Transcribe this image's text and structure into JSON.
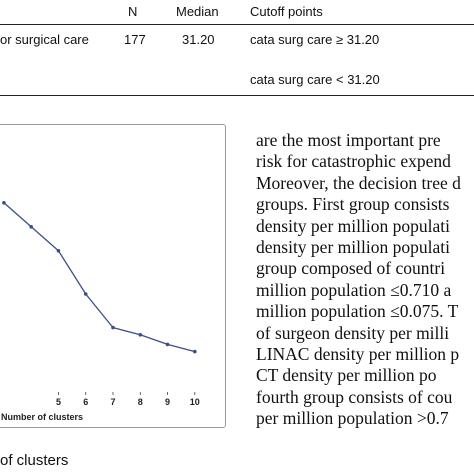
{
  "table": {
    "headers": {
      "n": "N",
      "median": "Median",
      "cutoff": "Cutoff points"
    },
    "row1": {
      "label": "or surgical care",
      "n": "177",
      "median": "31.20",
      "cutoff": "cata surg care ≥ 31.20"
    },
    "row2": {
      "cutoff": "cata surg care < 31.20"
    }
  },
  "figure": {
    "xlabel": "Number of clusters",
    "caption": "of clusters"
  },
  "chart_data": {
    "type": "line",
    "xlabel": "Number of clusters",
    "x": [
      3,
      4,
      5,
      6,
      7,
      8,
      9,
      10
    ],
    "x_ticks": [
      "5",
      "6",
      "7",
      "8",
      "9",
      "10"
    ],
    "y": [
      0.78,
      0.68,
      0.58,
      0.4,
      0.26,
      0.23,
      0.19,
      0.16
    ],
    "xlim": [
      2.6,
      10.3
    ],
    "ylim": [
      0,
      1
    ],
    "line_color": "#3a4f8a",
    "grid": false
  },
  "body_lines": [
    "are the most important pre",
    "risk for catastrophic expend",
    "Moreover, the decision tree d",
    "groups. First group consists",
    "density per million populati",
    "density per million populati",
    "group composed of countri",
    "million population ≤0.710 a",
    "million population ≤0.075. T",
    "of surgeon density per milli",
    "LINAC density per million p",
    "CT density per million po",
    "fourth group consists of cou",
    "per million population >0.7"
  ]
}
